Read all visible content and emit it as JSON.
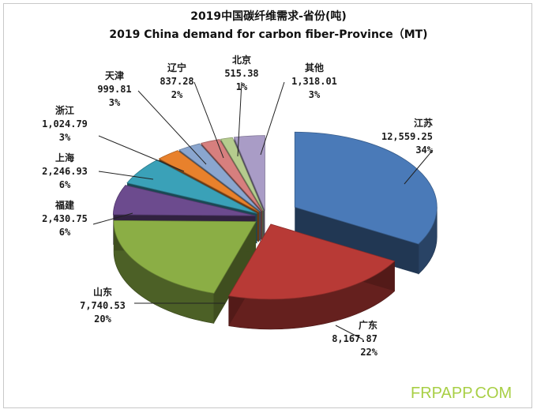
{
  "title_cn": "2019中国碳纤维需求-省份(吨)",
  "title_en": "2019 China demand for carbon fiber-Province（MT)",
  "watermark": "FRPAPP.COM",
  "colors": {
    "jiangsu": "#4a7ab8",
    "guangdong": "#b83a36",
    "shandong": "#8bae45",
    "fujian": "#6c4b8e",
    "shanghai": "#3aa1b8",
    "zhejiang": "#e8812c",
    "tianjin": "#8aa6cf",
    "liaoning": "#d77f7e",
    "beijing": "#b5cc8e",
    "other": "#a99cc6"
  },
  "chart_data": {
    "type": "pie",
    "style": "3d-exploded",
    "title": "2019中国碳纤维需求-省份(吨)",
    "subtitle": "2019 China demand for carbon fiber-Province（MT)",
    "slices": [
      {
        "name": "江苏",
        "value_text": "12,559.25",
        "value": 12559.25,
        "percent": "34%"
      },
      {
        "name": "广东",
        "value_text": "8,167.87",
        "value": 8167.87,
        "percent": "22%"
      },
      {
        "name": "山东",
        "value_text": "7,740.53",
        "value": 7740.53,
        "percent": "20%"
      },
      {
        "name": "福建",
        "value_text": "2,430.75",
        "value": 2430.75,
        "percent": "6%"
      },
      {
        "name": "上海",
        "value_text": "2,246.93",
        "value": 2246.93,
        "percent": "6%"
      },
      {
        "name": "浙江",
        "value_text": "1,024.79",
        "value": 1024.79,
        "percent": "3%"
      },
      {
        "name": "天津",
        "value_text": "999.81",
        "value": 999.81,
        "percent": "3%"
      },
      {
        "name": "辽宁",
        "value_text": "837.28",
        "value": 837.28,
        "percent": "2%"
      },
      {
        "name": "北京",
        "value_text": "515.38",
        "value": 515.38,
        "percent": "1%"
      },
      {
        "name": "其他",
        "value_text": "1,318.01",
        "value": 1318.01,
        "percent": "3%"
      }
    ]
  }
}
